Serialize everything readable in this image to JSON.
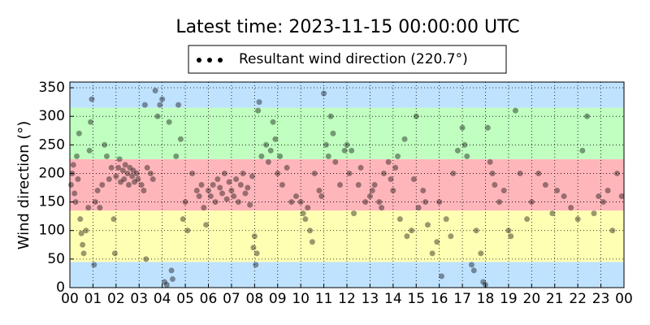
{
  "chart_data": {
    "type": "scatter",
    "title": "Latest time: 2023-11-15 00:00:00 UTC",
    "ylabel": "Wind direction (°)",
    "xlim": [
      0,
      24
    ],
    "ylim": [
      0,
      360
    ],
    "xticks": [
      {
        "value": 0,
        "label": "00"
      },
      {
        "value": 1,
        "label": "01"
      },
      {
        "value": 2,
        "label": "02"
      },
      {
        "value": 3,
        "label": "03"
      },
      {
        "value": 4,
        "label": "04"
      },
      {
        "value": 5,
        "label": "05"
      },
      {
        "value": 6,
        "label": "06"
      },
      {
        "value": 7,
        "label": "07"
      },
      {
        "value": 8,
        "label": "08"
      },
      {
        "value": 9,
        "label": "09"
      },
      {
        "value": 10,
        "label": "10"
      },
      {
        "value": 11,
        "label": "11"
      },
      {
        "value": 12,
        "label": "12"
      },
      {
        "value": 13,
        "label": "13"
      },
      {
        "value": 14,
        "label": "14"
      },
      {
        "value": 15,
        "label": "15"
      },
      {
        "value": 16,
        "label": "16"
      },
      {
        "value": 17,
        "label": "17"
      },
      {
        "value": 18,
        "label": "18"
      },
      {
        "value": 19,
        "label": "19"
      },
      {
        "value": 20,
        "label": "20"
      },
      {
        "value": 21,
        "label": "21"
      },
      {
        "value": 22,
        "label": "22"
      },
      {
        "value": 23,
        "label": "23"
      },
      {
        "value": 24,
        "label": "00"
      }
    ],
    "yticks": [
      0,
      50,
      100,
      150,
      200,
      250,
      300,
      350
    ],
    "grid": true,
    "bands": [
      {
        "from": 0,
        "to": 45,
        "color": "#bfe2ff"
      },
      {
        "from": 45,
        "to": 135,
        "color": "#ffffb3"
      },
      {
        "from": 135,
        "to": 225,
        "color": "#ffb6bb"
      },
      {
        "from": 225,
        "to": 315,
        "color": "#c0ffc0"
      },
      {
        "from": 315,
        "to": 360,
        "color": "#bfe2ff"
      }
    ],
    "legend": "upper center",
    "series": [
      {
        "name": "Resultant wind direction (220.7°)",
        "color": "#000000",
        "opacity": 0.4,
        "x": [
          0.05,
          0.1,
          0.15,
          0.2,
          0.25,
          0.3,
          0.35,
          0.4,
          0.45,
          0.5,
          0.55,
          0.6,
          0.7,
          0.8,
          0.85,
          0.9,
          0.95,
          1.05,
          1.1,
          1.2,
          1.3,
          1.4,
          1.5,
          1.6,
          1.7,
          1.8,
          1.9,
          1.95,
          2.0,
          2.1,
          2.15,
          2.2,
          2.3,
          2.35,
          2.4,
          2.5,
          2.55,
          2.6,
          2.7,
          2.75,
          2.8,
          2.9,
          2.95,
          3.1,
          3.2,
          3.25,
          3.3,
          3.35,
          3.5,
          3.6,
          3.7,
          3.8,
          3.9,
          4.0,
          4.1,
          4.2,
          4.3,
          4.4,
          4.45,
          4.6,
          4.7,
          4.8,
          4.9,
          5.0,
          5.1,
          5.3,
          5.5,
          5.6,
          5.7,
          5.8,
          5.9,
          6.0,
          6.1,
          6.2,
          6.3,
          6.4,
          6.5,
          6.6,
          6.7,
          6.8,
          6.9,
          7.0,
          7.1,
          7.2,
          7.3,
          7.4,
          7.5,
          7.6,
          7.7,
          7.8,
          7.9,
          7.95,
          8.0,
          8.05,
          8.1,
          8.15,
          8.2,
          8.3,
          8.5,
          8.6,
          8.7,
          8.8,
          8.9,
          9.0,
          9.1,
          9.2,
          9.4,
          9.6,
          9.8,
          10.0,
          10.1,
          10.2,
          10.3,
          10.4,
          10.5,
          10.6,
          10.8,
          10.9,
          11.0,
          11.1,
          11.2,
          11.3,
          11.4,
          11.5,
          11.7,
          11.9,
          12.0,
          12.1,
          12.2,
          12.3,
          12.5,
          12.6,
          12.8,
          13.0,
          13.1,
          13.2,
          13.4,
          13.5,
          13.6,
          13.8,
          13.9,
          14.0,
          14.1,
          14.2,
          14.3,
          14.5,
          14.6,
          14.8,
          14.9,
          15.0,
          15.1,
          15.3,
          15.4,
          15.5,
          15.7,
          15.9,
          16.0,
          16.1,
          16.3,
          16.5,
          16.6,
          16.8,
          17.0,
          17.1,
          17.2,
          17.4,
          17.5,
          17.6,
          17.8,
          17.9,
          18.0,
          18.1,
          18.2,
          18.3,
          18.4,
          18.6,
          18.8,
          19.0,
          19.1,
          19.3,
          19.5,
          19.8,
          20.0,
          20.3,
          20.6,
          20.9,
          21.1,
          21.4,
          21.7,
          22.0,
          22.2,
          22.4,
          22.7,
          22.9,
          23.1,
          23.3,
          23.5,
          23.7,
          23.9
        ],
        "values": [
          180,
          200,
          215,
          165,
          150,
          230,
          190,
          270,
          120,
          95,
          75,
          60,
          100,
          140,
          240,
          290,
          330,
          40,
          150,
          170,
          140,
          180,
          250,
          230,
          190,
          210,
          120,
          60,
          195,
          210,
          225,
          185,
          205,
          190,
          215,
          200,
          180,
          210,
          195,
          205,
          185,
          200,
          190,
          180,
          170,
          320,
          50,
          210,
          200,
          190,
          345,
          300,
          320,
          330,
          10,
          5,
          290,
          30,
          15,
          230,
          320,
          260,
          120,
          150,
          100,
          200,
          170,
          160,
          180,
          140,
          110,
          170,
          160,
          180,
          150,
          190,
          175,
          165,
          200,
          155,
          185,
          170,
          160,
          190,
          150,
          180,
          200,
          165,
          175,
          145,
          195,
          70,
          90,
          40,
          60,
          310,
          325,
          230,
          250,
          220,
          240,
          290,
          260,
          200,
          230,
          180,
          210,
          150,
          160,
          150,
          130,
          120,
          140,
          100,
          80,
          200,
          170,
          160,
          340,
          250,
          230,
          300,
          270,
          220,
          180,
          240,
          250,
          200,
          240,
          130,
          180,
          210,
          150,
          160,
          170,
          180,
          150,
          140,
          200,
          220,
          190,
          170,
          210,
          230,
          120,
          260,
          90,
          100,
          190,
          300,
          140,
          170,
          150,
          110,
          60,
          80,
          150,
          20,
          120,
          90,
          200,
          240,
          280,
          250,
          230,
          40,
          30,
          100,
          60,
          10,
          5,
          280,
          220,
          200,
          180,
          150,
          170,
          100,
          90,
          310,
          200,
          120,
          150,
          200,
          180,
          130,
          170,
          160,
          140,
          120,
          240,
          300,
          130,
          160,
          150,
          170,
          100,
          200,
          160
        ]
      }
    ]
  }
}
